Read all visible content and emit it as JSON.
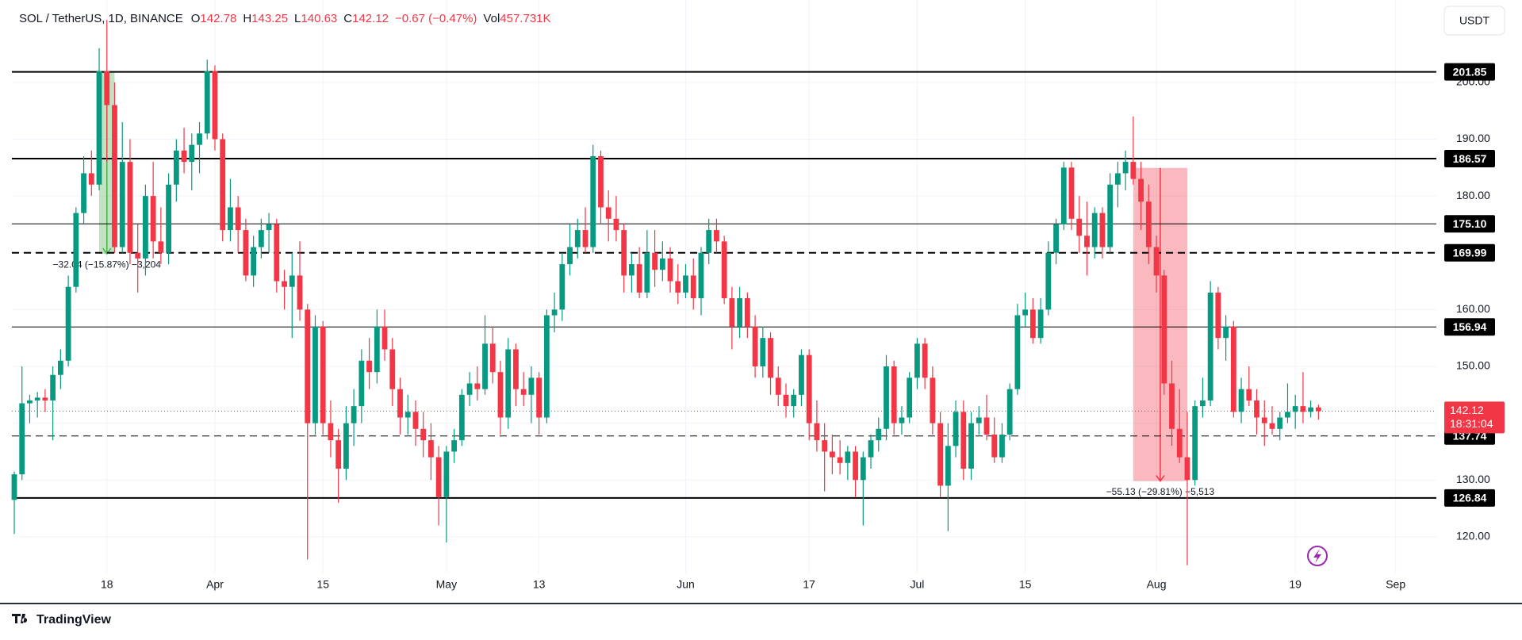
{
  "header": {
    "symbol": "SOL / TetherUS, 1D, BINANCE",
    "open_label": "O",
    "high_label": "H",
    "low_label": "L",
    "close_label": "C",
    "change": "−0.67 (−0.47%)",
    "vol_label": "Vol",
    "volume": "457.731K",
    "currency_button": "USDT",
    "branding": "TradingView",
    "countdown": "18:31:04"
  },
  "chart_data": {
    "type": "candlestick",
    "up_color": "#089981",
    "down_color": "#f23645",
    "grid": true,
    "ylim": [
      113.7,
      214.5
    ],
    "yticks": [
      {
        "value": 120,
        "label": "120.00"
      },
      {
        "value": 130,
        "label": "130.00"
      },
      {
        "value": 140,
        "label": "140.00"
      },
      {
        "value": 150,
        "label": "150.00"
      },
      {
        "value": 160,
        "label": "160.00"
      },
      {
        "value": 170,
        "label": "170.00"
      },
      {
        "value": 180,
        "label": "180.00"
      },
      {
        "value": 190,
        "label": "190.00"
      },
      {
        "value": 200,
        "label": "200.00"
      }
    ],
    "categories": [
      null,
      null,
      null,
      null,
      null,
      null,
      null,
      null,
      null,
      null,
      null,
      null,
      "18",
      null,
      null,
      null,
      null,
      null,
      null,
      null,
      null,
      null,
      null,
      null,
      null,
      null,
      "Apr",
      null,
      null,
      null,
      null,
      null,
      null,
      null,
      null,
      null,
      null,
      null,
      null,
      null,
      "15",
      null,
      null,
      null,
      null,
      null,
      null,
      null,
      null,
      null,
      null,
      null,
      null,
      null,
      null,
      null,
      "May",
      null,
      null,
      null,
      null,
      null,
      null,
      null,
      null,
      null,
      null,
      null,
      "13",
      null,
      null,
      null,
      null,
      null,
      null,
      null,
      null,
      null,
      null,
      null,
      null,
      null,
      null,
      null,
      null,
      null,
      null,
      "Jun",
      null,
      null,
      null,
      null,
      null,
      null,
      null,
      null,
      null,
      null,
      null,
      null,
      null,
      null,
      null,
      "17",
      null,
      null,
      null,
      null,
      null,
      null,
      null,
      null,
      null,
      null,
      null,
      null,
      null,
      "Jul",
      null,
      null,
      null,
      null,
      null,
      null,
      null,
      null,
      null,
      null,
      null,
      null,
      null,
      "15",
      null,
      null,
      null,
      null,
      null,
      null,
      null,
      null,
      null,
      null,
      null,
      null,
      null,
      null,
      null,
      null,
      "Aug",
      null,
      null,
      null,
      null,
      null,
      null,
      null,
      null,
      null,
      null,
      null,
      null,
      null,
      null,
      null,
      null,
      null,
      "19",
      null,
      null,
      null,
      null,
      null,
      null,
      null,
      null,
      null,
      null,
      null,
      null,
      "Sep",
      null,
      null,
      null,
      null
    ],
    "ohlc": [
      [
        126.5,
        131.5,
        120.5,
        131
      ],
      [
        131,
        150,
        130,
        143.5
      ],
      [
        143.5,
        145,
        140,
        144
      ],
      [
        144,
        145.5,
        141,
        144.5
      ],
      [
        144.5,
        146,
        142,
        144
      ],
      [
        144,
        150,
        137,
        148.5
      ],
      [
        148.5,
        153,
        146,
        151
      ],
      [
        151,
        166,
        150,
        164
      ],
      [
        164,
        178,
        163,
        177
      ],
      [
        177,
        187,
        175,
        184
      ],
      [
        184,
        188,
        180,
        182
      ],
      [
        182,
        206,
        181,
        202
      ],
      [
        202,
        211,
        186,
        196
      ],
      [
        196,
        200,
        170,
        171
      ],
      [
        171,
        193,
        170,
        186
      ],
      [
        186,
        190,
        168,
        170
      ],
      [
        170,
        175,
        163,
        169
      ],
      [
        169,
        182,
        166,
        180
      ],
      [
        180,
        186,
        169,
        172
      ],
      [
        172,
        178,
        168,
        170
      ],
      [
        170,
        184,
        168,
        182
      ],
      [
        182,
        190,
        179,
        188
      ],
      [
        188,
        192,
        184,
        186
      ],
      [
        186,
        191,
        181,
        189
      ],
      [
        189,
        193,
        184,
        191
      ],
      [
        191,
        204,
        190,
        202
      ],
      [
        202,
        203,
        188,
        190
      ],
      [
        190,
        191,
        172,
        174
      ],
      [
        174,
        183,
        172,
        178
      ],
      [
        178,
        180,
        170,
        174
      ],
      [
        174,
        176,
        165,
        166
      ],
      [
        166,
        173,
        164,
        171
      ],
      [
        171,
        176,
        169,
        174
      ],
      [
        174,
        177,
        170,
        175
      ],
      [
        175,
        176,
        163,
        165
      ],
      [
        165,
        167,
        160,
        164
      ],
      [
        164,
        170,
        155,
        166
      ],
      [
        166,
        172,
        158,
        160
      ],
      [
        160,
        161,
        116,
        140
      ],
      [
        140,
        159,
        138,
        157
      ],
      [
        157,
        158,
        138,
        140
      ],
      [
        140,
        144,
        134,
        137
      ],
      [
        137,
        139,
        126,
        132
      ],
      [
        132,
        143,
        130,
        140
      ],
      [
        140,
        146,
        136,
        143
      ],
      [
        143,
        153,
        140,
        151
      ],
      [
        151,
        155,
        146,
        149
      ],
      [
        149,
        160,
        147,
        157
      ],
      [
        157,
        160,
        151,
        153
      ],
      [
        153,
        155,
        143,
        146
      ],
      [
        146,
        148,
        138,
        141
      ],
      [
        141,
        145,
        138,
        142
      ],
      [
        142,
        144,
        136,
        139
      ],
      [
        139,
        142,
        134,
        137
      ],
      [
        137,
        140,
        130,
        134
      ],
      [
        134,
        136,
        122,
        127
      ],
      [
        127,
        136,
        119,
        135
      ],
      [
        135,
        139,
        133,
        137
      ],
      [
        137,
        146,
        136,
        145
      ],
      [
        145,
        149,
        143,
        147
      ],
      [
        147,
        150,
        144,
        146
      ],
      [
        146,
        159,
        145,
        154
      ],
      [
        154,
        157,
        147,
        149
      ],
      [
        149,
        151,
        138,
        141
      ],
      [
        141,
        155,
        139,
        153
      ],
      [
        153,
        154,
        143,
        146
      ],
      [
        146,
        149,
        143,
        145
      ],
      [
        145,
        150,
        140,
        148
      ],
      [
        148,
        149,
        138,
        141
      ],
      [
        141,
        160,
        140,
        159
      ],
      [
        159,
        163,
        156,
        160
      ],
      [
        160,
        170,
        158,
        168
      ],
      [
        168,
        175,
        166,
        171
      ],
      [
        171,
        176,
        169,
        174
      ],
      [
        174,
        178,
        170,
        171
      ],
      [
        171,
        189,
        170,
        187
      ],
      [
        187,
        188,
        175,
        178
      ],
      [
        178,
        181,
        172,
        176
      ],
      [
        176,
        180,
        172,
        174
      ],
      [
        174,
        175,
        163,
        166
      ],
      [
        166,
        170,
        163,
        168
      ],
      [
        168,
        171,
        162,
        163
      ],
      [
        163,
        174,
        162,
        170
      ],
      [
        170,
        174,
        164,
        167
      ],
      [
        167,
        172,
        165,
        169
      ],
      [
        169,
        171,
        163,
        165
      ],
      [
        165,
        168,
        161,
        163
      ],
      [
        163,
        168,
        162,
        166
      ],
      [
        166,
        169,
        160,
        162
      ],
      [
        162,
        171,
        159,
        170
      ],
      [
        170,
        176,
        168,
        174
      ],
      [
        174,
        176,
        170,
        172
      ],
      [
        172,
        173,
        161,
        162
      ],
      [
        162,
        164,
        153,
        157
      ],
      [
        157,
        164,
        155,
        162
      ],
      [
        162,
        163,
        155,
        157
      ],
      [
        157,
        159,
        148,
        150
      ],
      [
        150,
        157,
        148,
        155
      ],
      [
        155,
        156,
        145,
        148
      ],
      [
        148,
        150,
        143,
        145
      ],
      [
        145,
        147,
        141,
        143
      ],
      [
        143,
        146,
        141,
        145
      ],
      [
        145,
        153,
        143,
        152
      ],
      [
        152,
        153,
        137,
        140
      ],
      [
        140,
        144,
        135,
        137
      ],
      [
        137,
        140,
        128,
        135
      ],
      [
        135,
        138,
        131,
        134
      ],
      [
        134,
        137,
        131,
        133
      ],
      [
        133,
        136,
        130,
        135
      ],
      [
        135,
        136,
        127,
        130
      ],
      [
        130,
        135,
        122,
        134
      ],
      [
        134,
        138,
        132,
        137
      ],
      [
        137,
        141,
        135,
        139
      ],
      [
        139,
        152,
        137,
        150
      ],
      [
        150,
        151,
        138,
        140
      ],
      [
        140,
        143,
        138,
        141
      ],
      [
        141,
        149,
        140,
        148
      ],
      [
        148,
        155,
        146,
        154
      ],
      [
        154,
        155,
        146,
        148
      ],
      [
        148,
        150,
        138,
        140
      ],
      [
        140,
        142,
        127,
        129
      ],
      [
        129,
        140,
        121,
        136
      ],
      [
        136,
        144,
        134,
        142
      ],
      [
        142,
        144,
        130,
        132
      ],
      [
        132,
        142,
        130,
        140
      ],
      [
        140,
        143,
        138,
        141
      ],
      [
        141,
        145,
        137,
        138
      ],
      [
        138,
        141,
        133,
        134
      ],
      [
        134,
        140,
        133,
        138
      ],
      [
        138,
        147,
        137,
        146
      ],
      [
        146,
        161,
        145,
        159
      ],
      [
        159,
        163,
        157,
        160
      ],
      [
        160,
        162,
        154,
        155
      ],
      [
        155,
        162,
        154,
        160
      ],
      [
        160,
        172,
        159,
        170
      ],
      [
        170,
        176,
        168,
        175
      ],
      [
        175,
        186,
        174,
        185
      ],
      [
        185,
        186,
        174,
        176
      ],
      [
        176,
        180,
        170,
        173
      ],
      [
        173,
        179,
        166,
        171
      ],
      [
        171,
        178,
        169,
        177
      ],
      [
        177,
        178,
        169,
        171
      ],
      [
        171,
        184,
        170,
        182
      ],
      [
        182,
        186,
        178,
        184
      ],
      [
        184,
        188,
        181,
        186
      ],
      [
        186,
        194,
        182,
        183
      ],
      [
        183,
        186,
        174,
        179
      ],
      [
        179,
        182,
        168,
        171
      ],
      [
        171,
        173,
        163,
        166
      ],
      [
        166,
        167,
        145,
        147
      ],
      [
        147,
        151,
        136,
        139
      ],
      [
        139,
        146,
        133,
        134
      ],
      [
        134,
        142,
        115,
        130
      ],
      [
        130,
        144,
        129,
        143
      ],
      [
        143,
        148,
        141,
        144
      ],
      [
        144,
        165,
        143,
        163
      ],
      [
        163,
        164,
        153,
        155
      ],
      [
        155,
        159,
        151,
        157
      ],
      [
        157,
        158,
        141,
        142
      ],
      [
        142,
        148,
        140,
        146
      ],
      [
        146,
        150,
        143,
        144
      ],
      [
        144,
        146,
        138,
        141
      ],
      [
        141,
        144,
        136,
        140
      ],
      [
        140,
        143,
        138,
        139
      ],
      [
        139,
        142,
        137,
        141
      ],
      [
        141,
        147,
        140,
        142
      ],
      [
        142,
        145,
        139,
        143
      ],
      [
        143,
        149,
        140,
        142
      ],
      [
        142,
        144,
        141,
        142.78
      ],
      [
        142.78,
        143.25,
        140.63,
        142.12
      ],
      null,
      null,
      null,
      null,
      null,
      null,
      null,
      null,
      null,
      null,
      null,
      null,
      null,
      null
    ],
    "levels": [
      {
        "value": 201.85,
        "style": "solid",
        "width": 2
      },
      {
        "value": 186.57,
        "style": "solid",
        "width": 2
      },
      {
        "value": 175.1,
        "label": "175.10",
        "style": "solid",
        "width": 1
      },
      {
        "value": 169.99,
        "style": "dashed",
        "width": 2
      },
      {
        "value": 156.94,
        "style": "solid",
        "width": 1
      },
      {
        "value": 137.74,
        "style": "dashed",
        "width": 1
      },
      {
        "value": 126.84,
        "style": "solid",
        "width": 2
      }
    ],
    "measures": [
      {
        "start": 201.85,
        "end": 169.81,
        "x_range": [
          11,
          13
        ],
        "color": "#4caf50",
        "label": "−32.04 (−15.87%) −3,204"
      },
      {
        "start": 184.94,
        "end": 129.81,
        "x_range": [
          145,
          152
        ],
        "color": "#f23645",
        "label": "−55.13 (−29.81%) −5,513"
      }
    ]
  }
}
